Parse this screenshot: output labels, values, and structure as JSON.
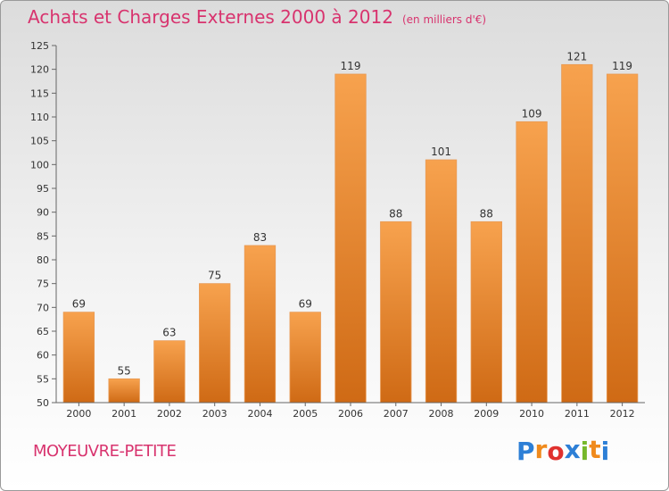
{
  "header": {
    "title": "Achats et Charges Externes 2000 à 2012",
    "subtitle": "(en milliers d'€)"
  },
  "footer": {
    "commune": "MOYEUVRE-PETITE",
    "logo_letters": [
      "P",
      "r",
      "o",
      "x",
      "i",
      "t",
      "i"
    ],
    "logo_colors": [
      "#2d7fd6",
      "#f08a1c",
      "#e0312e",
      "#2d7fd6",
      "#76b82a",
      "#f08a1c",
      "#2d7fd6"
    ]
  },
  "colors": {
    "bar_light": "#f7a24e",
    "bar_dark": "#cf6a15",
    "accent": "#d8336e"
  },
  "chart_data": {
    "type": "bar",
    "title": "Achats et Charges Externes 2000 à 2012",
    "subtitle": "(en milliers d'€)",
    "xlabel": "",
    "ylabel": "",
    "categories": [
      "2000",
      "2001",
      "2002",
      "2003",
      "2004",
      "2005",
      "2006",
      "2007",
      "2008",
      "2009",
      "2010",
      "2011",
      "2012"
    ],
    "values": [
      69,
      55,
      63,
      75,
      83,
      69,
      119,
      88,
      101,
      88,
      109,
      121,
      119
    ],
    "data_labels": [
      "69",
      "55",
      "63",
      "75",
      "83",
      "69",
      "119",
      "88",
      "101",
      "88",
      "109",
      "121",
      "119"
    ],
    "ylim": [
      50,
      125
    ],
    "yticks": [
      50,
      55,
      60,
      65,
      70,
      75,
      80,
      85,
      90,
      95,
      100,
      105,
      110,
      115,
      120,
      125
    ],
    "grid": false,
    "legend": "none"
  }
}
